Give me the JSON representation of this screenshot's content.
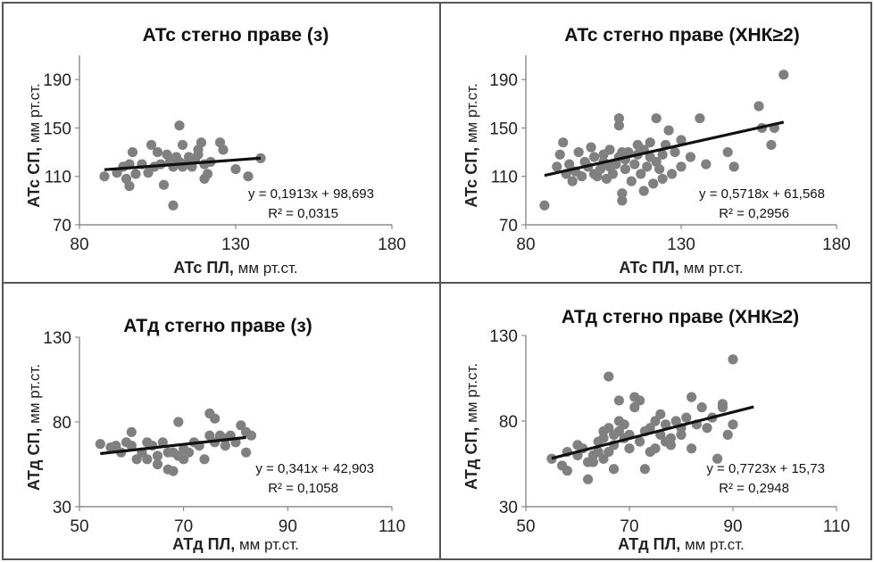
{
  "chart_data": [
    {
      "type": "scatter",
      "title": "АТс стегно праве (з)",
      "xlabel_bold": "АТс ПЛ,",
      "xlabel_unit": " мм рт.ст.",
      "ylabel_bold": "АТс СП,",
      "ylabel_unit": " мм рт.ст.",
      "xlim": [
        80,
        180
      ],
      "ylim": [
        70,
        210
      ],
      "xticks": [
        "80",
        "130",
        "180"
      ],
      "yticks": [
        "70",
        "110",
        "150",
        "190"
      ],
      "equation": "y = 0,1913x + 98,693",
      "r2": "R² = 0,0315",
      "trend": {
        "slope": 0.1913,
        "intercept": 98.693,
        "x": [
          88,
          138
        ]
      },
      "points": [
        [
          88,
          110
        ],
        [
          92,
          113
        ],
        [
          94,
          118
        ],
        [
          95,
          108
        ],
        [
          96,
          102
        ],
        [
          96,
          120
        ],
        [
          97,
          130
        ],
        [
          98,
          112
        ],
        [
          100,
          120
        ],
        [
          102,
          113
        ],
        [
          103,
          136
        ],
        [
          104,
          118
        ],
        [
          105,
          130
        ],
        [
          106,
          120
        ],
        [
          107,
          103
        ],
        [
          108,
          128
        ],
        [
          109,
          122
        ],
        [
          110,
          86
        ],
        [
          110,
          118
        ],
        [
          111,
          126
        ],
        [
          112,
          152
        ],
        [
          112,
          122
        ],
        [
          113,
          118
        ],
        [
          113,
          136
        ],
        [
          114,
          120
        ],
        [
          115,
          126
        ],
        [
          116,
          118
        ],
        [
          117,
          124
        ],
        [
          118,
          132
        ],
        [
          118,
          128
        ],
        [
          119,
          138
        ],
        [
          120,
          120
        ],
        [
          120,
          108
        ],
        [
          121,
          112
        ],
        [
          122,
          122
        ],
        [
          125,
          138
        ],
        [
          126,
          132
        ],
        [
          130,
          116
        ],
        [
          134,
          110
        ],
        [
          138,
          125
        ]
      ]
    },
    {
      "type": "scatter",
      "title": "АТс стегно праве (ХНК≥2)",
      "xlabel_bold": "АТс ПЛ,",
      "xlabel_unit": " мм рт.ст.",
      "ylabel_bold": "АТс СП,",
      "ylabel_unit": " мм рт.ст.",
      "xlim": [
        80,
        180
      ],
      "ylim": [
        70,
        210
      ],
      "xticks": [
        "80",
        "130",
        "180"
      ],
      "yticks": [
        "70",
        "110",
        "150",
        "190"
      ],
      "equation": "y = 0,5718x + 61,568",
      "r2": "R² = 0,2956",
      "trend": {
        "slope": 0.5718,
        "intercept": 61.568,
        "x": [
          86,
          163
        ]
      },
      "points": [
        [
          86,
          86
        ],
        [
          90,
          118
        ],
        [
          91,
          128
        ],
        [
          92,
          138
        ],
        [
          93,
          112
        ],
        [
          94,
          120
        ],
        [
          95,
          106
        ],
        [
          96,
          114
        ],
        [
          97,
          130
        ],
        [
          98,
          110
        ],
        [
          99,
          122
        ],
        [
          100,
          118
        ],
        [
          101,
          134
        ],
        [
          102,
          112
        ],
        [
          102,
          126
        ],
        [
          103,
          110
        ],
        [
          104,
          116
        ],
        [
          105,
          122
        ],
        [
          105,
          128
        ],
        [
          106,
          108
        ],
        [
          107,
          118
        ],
        [
          107,
          132
        ],
        [
          108,
          112
        ],
        [
          109,
          120
        ],
        [
          110,
          126
        ],
        [
          110,
          158
        ],
        [
          110,
          152
        ],
        [
          111,
          130
        ],
        [
          111,
          96
        ],
        [
          111,
          90
        ],
        [
          112,
          116
        ],
        [
          112,
          124
        ],
        [
          113,
          130
        ],
        [
          114,
          106
        ],
        [
          115,
          120
        ],
        [
          116,
          128
        ],
        [
          116,
          136
        ],
        [
          117,
          112
        ],
        [
          118,
          98
        ],
        [
          118,
          132
        ],
        [
          119,
          118
        ],
        [
          120,
          126
        ],
        [
          120,
          138
        ],
        [
          121,
          104
        ],
        [
          122,
          158
        ],
        [
          122,
          122
        ],
        [
          123,
          116
        ],
        [
          124,
          108
        ],
        [
          124,
          128
        ],
        [
          125,
          136
        ],
        [
          126,
          148
        ],
        [
          127,
          112
        ],
        [
          128,
          130
        ],
        [
          130,
          140
        ],
        [
          130,
          118
        ],
        [
          133,
          126
        ],
        [
          136,
          158
        ],
        [
          138,
          120
        ],
        [
          145,
          130
        ],
        [
          147,
          118
        ],
        [
          155,
          168
        ],
        [
          156,
          150
        ],
        [
          159,
          136
        ],
        [
          160,
          150
        ],
        [
          163,
          194
        ]
      ]
    },
    {
      "type": "scatter",
      "title": "АТд стегно праве (з)",
      "xlabel_bold": "АТд ПЛ,",
      "xlabel_unit": " мм рт.ст.",
      "ylabel_bold": "АТд СП,",
      "ylabel_unit": " мм рт.ст.",
      "xlim": [
        50,
        110
      ],
      "ylim": [
        30,
        130
      ],
      "xticks": [
        "50",
        "70",
        "90",
        "110"
      ],
      "yticks": [
        "30",
        "80",
        "130"
      ],
      "equation": "y = 0,341x + 42,903",
      "r2": "R² = 0,1058",
      "trend": {
        "slope": 0.341,
        "intercept": 42.903,
        "x": [
          54,
          82
        ]
      },
      "points": [
        [
          54,
          67
        ],
        [
          56,
          65
        ],
        [
          57,
          66
        ],
        [
          58,
          62
        ],
        [
          59,
          68
        ],
        [
          60,
          74
        ],
        [
          60,
          66
        ],
        [
          61,
          58
        ],
        [
          62,
          62
        ],
        [
          63,
          68
        ],
        [
          63,
          58
        ],
        [
          64,
          66
        ],
        [
          65,
          60
        ],
        [
          65,
          55
        ],
        [
          66,
          68
        ],
        [
          67,
          52
        ],
        [
          67,
          62
        ],
        [
          68,
          51
        ],
        [
          68,
          62
        ],
        [
          69,
          80
        ],
        [
          69,
          60
        ],
        [
          70,
          58
        ],
        [
          70,
          64
        ],
        [
          71,
          62
        ],
        [
          72,
          68
        ],
        [
          73,
          66
        ],
        [
          74,
          58
        ],
        [
          75,
          85
        ],
        [
          75,
          72
        ],
        [
          76,
          82
        ],
        [
          76,
          68
        ],
        [
          77,
          72
        ],
        [
          78,
          70
        ],
        [
          78,
          66
        ],
        [
          79,
          72
        ],
        [
          80,
          68
        ],
        [
          81,
          78
        ],
        [
          82,
          74
        ],
        [
          82,
          62
        ],
        [
          83,
          72
        ]
      ]
    },
    {
      "type": "scatter",
      "title": "АТд стегно праве (ХНК≥2)",
      "xlabel_bold": "АТд ПЛ,",
      "xlabel_unit": " мм рт.ст.",
      "ylabel_bold": "АТд СП,",
      "ylabel_unit": " мм рт.ст.",
      "xlim": [
        50,
        110
      ],
      "ylim": [
        30,
        130
      ],
      "xticks": [
        "50",
        "70",
        "90",
        "110"
      ],
      "yticks": [
        "30",
        "80",
        "130"
      ],
      "equation": "y = 0,7723x + 15,73",
      "r2": "R² = 0,2948",
      "trend": {
        "slope": 0.7723,
        "intercept": 15.73,
        "x": [
          55,
          94
        ]
      },
      "points": [
        [
          55,
          58
        ],
        [
          57,
          54
        ],
        [
          58,
          62
        ],
        [
          58,
          51
        ],
        [
          60,
          60
        ],
        [
          60,
          66
        ],
        [
          61,
          64
        ],
        [
          62,
          56
        ],
        [
          62,
          46
        ],
        [
          63,
          60
        ],
        [
          63,
          56
        ],
        [
          64,
          68
        ],
        [
          64,
          62
        ],
        [
          65,
          70
        ],
        [
          65,
          74
        ],
        [
          65,
          58
        ],
        [
          66,
          76
        ],
        [
          66,
          62
        ],
        [
          66,
          106
        ],
        [
          67,
          72
        ],
        [
          67,
          66
        ],
        [
          67,
          52
        ],
        [
          68,
          80
        ],
        [
          68,
          92
        ],
        [
          68,
          74
        ],
        [
          69,
          70
        ],
        [
          69,
          78
        ],
        [
          70,
          72
        ],
        [
          70,
          64
        ],
        [
          71,
          94
        ],
        [
          71,
          88
        ],
        [
          72,
          68
        ],
        [
          72,
          92
        ],
        [
          73,
          74
        ],
        [
          73,
          52
        ],
        [
          74,
          62
        ],
        [
          74,
          76
        ],
        [
          75,
          80
        ],
        [
          75,
          64
        ],
        [
          76,
          84
        ],
        [
          76,
          72
        ],
        [
          77,
          78
        ],
        [
          77,
          68
        ],
        [
          78,
          70
        ],
        [
          78,
          66
        ],
        [
          79,
          80
        ],
        [
          80,
          76
        ],
        [
          80,
          72
        ],
        [
          81,
          82
        ],
        [
          82,
          64
        ],
        [
          82,
          94
        ],
        [
          83,
          78
        ],
        [
          84,
          88
        ],
        [
          85,
          76
        ],
        [
          86,
          82
        ],
        [
          87,
          58
        ],
        [
          88,
          90
        ],
        [
          88,
          88
        ],
        [
          89,
          72
        ],
        [
          90,
          78
        ],
        [
          90,
          116
        ]
      ]
    }
  ]
}
